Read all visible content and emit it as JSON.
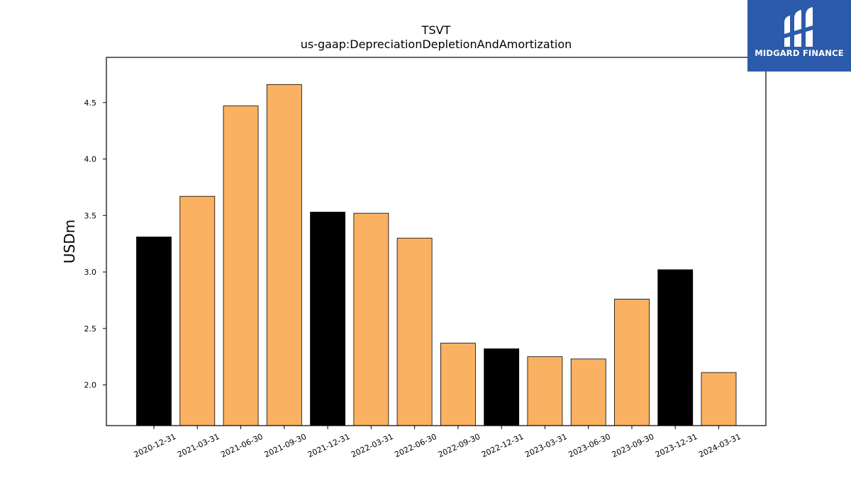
{
  "chart_data": {
    "type": "bar",
    "title": "TSVT",
    "subtitle": "us-gaap:DepreciationDepletionAndAmortization",
    "xlabel": "",
    "ylabel": "USDm",
    "categories": [
      "2020-12-31",
      "2021-03-31",
      "2021-06-30",
      "2021-09-30",
      "2021-12-31",
      "2022-03-31",
      "2022-06-30",
      "2022-09-30",
      "2022-12-31",
      "2023-03-31",
      "2023-06-30",
      "2023-09-30",
      "2023-12-31",
      "2024-03-31"
    ],
    "values": [
      3.31,
      3.67,
      4.47,
      4.66,
      3.53,
      3.52,
      3.3,
      2.37,
      2.32,
      2.25,
      2.23,
      2.76,
      3.02,
      2.11
    ],
    "bar_colors": [
      "#000000",
      "#fbb162",
      "#fbb162",
      "#fbb162",
      "#000000",
      "#fbb162",
      "#fbb162",
      "#fbb162",
      "#000000",
      "#fbb162",
      "#fbb162",
      "#fbb162",
      "#000000",
      "#fbb162"
    ],
    "ylim": [
      1.64,
      4.9
    ],
    "yticks": [
      "2.0",
      "2.5",
      "3.0",
      "3.5",
      "4.0",
      "4.5"
    ],
    "grid": false,
    "legend": "none"
  },
  "logo": {
    "text": "MIDGARD FINANCE",
    "background": "#2d5bab"
  }
}
